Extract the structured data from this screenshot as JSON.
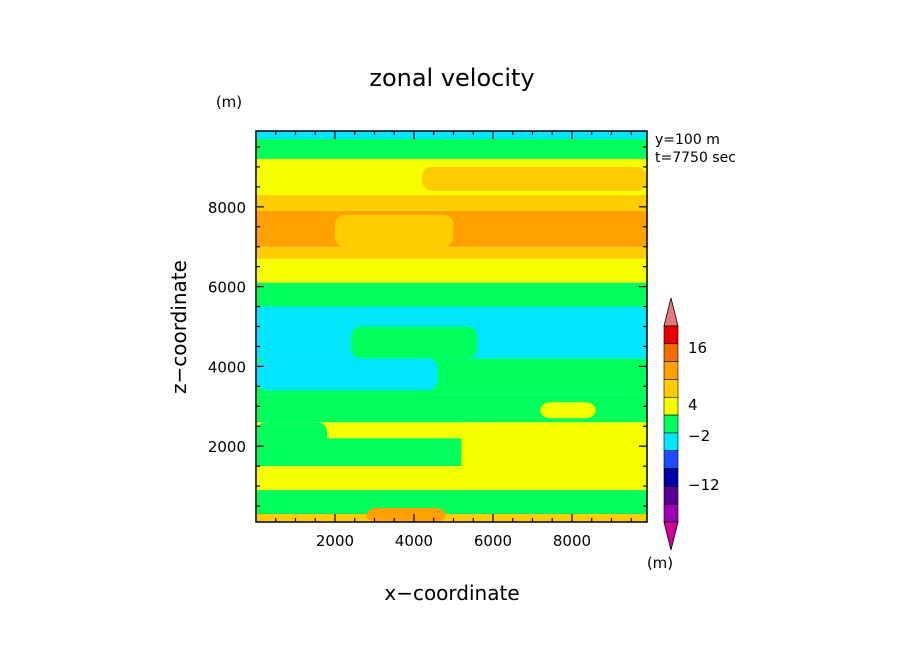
{
  "chart_data": {
    "type": "heatmap",
    "title": "zonal velocity",
    "xlabel": "x−coordinate",
    "ylabel": "z−coordinate",
    "units_y": "(m)",
    "units_colorbar": "(m)",
    "info_lines": [
      "y=100 m",
      "t=7750 sec"
    ],
    "xlim": [
      0,
      9900
    ],
    "ylim": [
      100,
      9900
    ],
    "x_ticks": [
      2000,
      4000,
      6000,
      8000
    ],
    "y_ticks": [
      2000,
      4000,
      6000,
      8000
    ],
    "x_tick_labels": [
      "2000",
      "4000",
      "6000",
      "8000"
    ],
    "y_tick_labels": [
      "2000",
      "4000",
      "6000",
      "8000"
    ],
    "grid": false,
    "colorbar": {
      "placement": "right",
      "level_labels": [
        "16",
        "4",
        "−2",
        "−12"
      ],
      "colors": [
        "#e67a7a",
        "#e60000",
        "#f06f00",
        "#ff9f00",
        "#ffcc00",
        "#f5ff00",
        "#00ff5a",
        "#00e6ff",
        "#1f4cff",
        "#0000a6",
        "#5a0099",
        "#9c00b3",
        "#d60099"
      ]
    },
    "bands": [
      {
        "z": [
          100,
          300
        ],
        "color": "#ffcc00"
      },
      {
        "z": [
          300,
          900
        ],
        "color": "#00ff5a"
      },
      {
        "z": [
          900,
          1500
        ],
        "color": "#f5ff00"
      },
      {
        "z": [
          1500,
          2200
        ],
        "color": "#00ff5a"
      },
      {
        "z": [
          2200,
          2600
        ],
        "color": "#f5ff00"
      },
      {
        "z": [
          2600,
          3300
        ],
        "color": "#00ff5a"
      },
      {
        "z": [
          3300,
          4200
        ],
        "color": "#00ff5a"
      },
      {
        "z": [
          4200,
          5500
        ],
        "color": "#00e6ff"
      },
      {
        "z": [
          5500,
          6100
        ],
        "color": "#00ff5a"
      },
      {
        "z": [
          6100,
          6700
        ],
        "color": "#f5ff00"
      },
      {
        "z": [
          6700,
          7000
        ],
        "color": "#ffcc00"
      },
      {
        "z": [
          7000,
          7900
        ],
        "color": "#ff9f00"
      },
      {
        "z": [
          7900,
          8300
        ],
        "color": "#ffcc00"
      },
      {
        "z": [
          8300,
          9200
        ],
        "color": "#f5ff00"
      },
      {
        "z": [
          9200,
          9700
        ],
        "color": "#00ff5a"
      },
      {
        "z": [
          9700,
          9900
        ],
        "color": "#00e6ff"
      }
    ],
    "patches": [
      {
        "x": [
          5200,
          9900
        ],
        "z": [
          1200,
          2600
        ],
        "color": "#f5ff00"
      },
      {
        "x": [
          0,
          1800
        ],
        "z": [
          2000,
          2600
        ],
        "color": "#00ff5a"
      },
      {
        "x": [
          7200,
          8600
        ],
        "z": [
          2700,
          3100
        ],
        "color": "#f5ff00"
      },
      {
        "x": [
          0,
          4600
        ],
        "z": [
          3400,
          4200
        ],
        "color": "#00e6ff"
      },
      {
        "x": [
          2400,
          5600
        ],
        "z": [
          4200,
          5000
        ],
        "color": "#00ff5a"
      },
      {
        "x": [
          2000,
          5000
        ],
        "z": [
          7000,
          7800
        ],
        "color": "#ffcc00"
      },
      {
        "x": [
          4200,
          9900
        ],
        "z": [
          8400,
          9000
        ],
        "color": "#ffcc00"
      },
      {
        "x": [
          2800,
          4800
        ],
        "z": [
          50,
          450
        ],
        "color": "#ff9f00"
      }
    ]
  }
}
